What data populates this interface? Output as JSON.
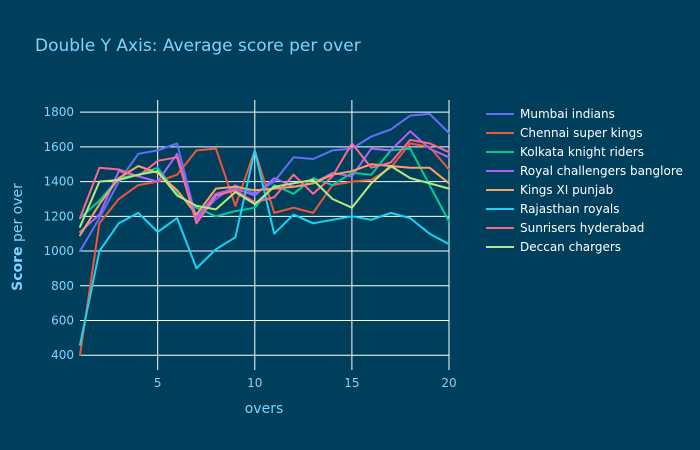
{
  "chart_data": {
    "type": "line",
    "title": "Double Y Axis: Average score per over",
    "xlabel": "overs",
    "ylabel_bold": "Score",
    "ylabel_rest": " per over",
    "xlim": [
      1,
      20
    ],
    "ylim": [
      315,
      1870
    ],
    "xticks": [
      5,
      10,
      15,
      20
    ],
    "yticks": [
      400,
      600,
      800,
      1000,
      1200,
      1400,
      1600,
      1800
    ],
    "grid": true,
    "legend_position": "right",
    "x": [
      1,
      2,
      3,
      4,
      5,
      6,
      7,
      8,
      9,
      10,
      11,
      12,
      13,
      14,
      15,
      16,
      17,
      18,
      19,
      20
    ],
    "series": [
      {
        "name": "Mumbai indians",
        "color": "#636efa",
        "values": [
          1000,
          1190,
          1400,
          1560,
          1580,
          1620,
          1180,
          1300,
          1380,
          1330,
          1400,
          1540,
          1530,
          1580,
          1590,
          1660,
          1700,
          1780,
          1790,
          1680
        ]
      },
      {
        "name": "Chennai super kings",
        "color": "#ef553b",
        "values": [
          400,
          1160,
          1300,
          1380,
          1400,
          1440,
          1580,
          1590,
          1260,
          1580,
          1220,
          1250,
          1220,
          1380,
          1400,
          1410,
          1480,
          1620,
          1600,
          1470
        ]
      },
      {
        "name": "Kolkata knight riders",
        "color": "#00cc96",
        "values": [
          1190,
          1290,
          1420,
          1440,
          1480,
          1330,
          1250,
          1200,
          1230,
          1250,
          1380,
          1330,
          1420,
          1380,
          1450,
          1440,
          1580,
          1590,
          1380,
          1170
        ]
      },
      {
        "name": "Royal challengers banglore",
        "color": "#ab63fa",
        "values": [
          1110,
          1210,
          1460,
          1430,
          1400,
          1560,
          1190,
          1330,
          1360,
          1320,
          1420,
          1370,
          1390,
          1450,
          1430,
          1590,
          1580,
          1690,
          1590,
          1540
        ]
      },
      {
        "name": "Kings XI punjab",
        "color": "#ffa15a",
        "values": [
          1090,
          1270,
          1420,
          1490,
          1450,
          1350,
          1210,
          1360,
          1370,
          1350,
          1360,
          1370,
          1390,
          1440,
          1460,
          1500,
          1490,
          1480,
          1480,
          1390
        ]
      },
      {
        "name": "Rajasthan royals",
        "color": "#19d3f3",
        "values": [
          460,
          1000,
          1160,
          1220,
          1110,
          1190,
          900,
          1010,
          1080,
          1580,
          1100,
          1210,
          1160,
          1180,
          1200,
          1180,
          1220,
          1190,
          1100,
          1040
        ]
      },
      {
        "name": "Sunrisers hyderabad",
        "color": "#ff6692",
        "values": [
          1190,
          1480,
          1470,
          1430,
          1520,
          1540,
          1160,
          1320,
          1350,
          1280,
          1310,
          1440,
          1330,
          1430,
          1620,
          1480,
          1510,
          1640,
          1620,
          1570
        ]
      },
      {
        "name": "Deccan chargers",
        "color": "#b6e880",
        "values": [
          1140,
          1400,
          1410,
          1440,
          1460,
          1320,
          1260,
          1240,
          1340,
          1270,
          1370,
          1390,
          1410,
          1300,
          1250,
          1390,
          1490,
          1420,
          1390,
          1360
        ]
      }
    ]
  }
}
